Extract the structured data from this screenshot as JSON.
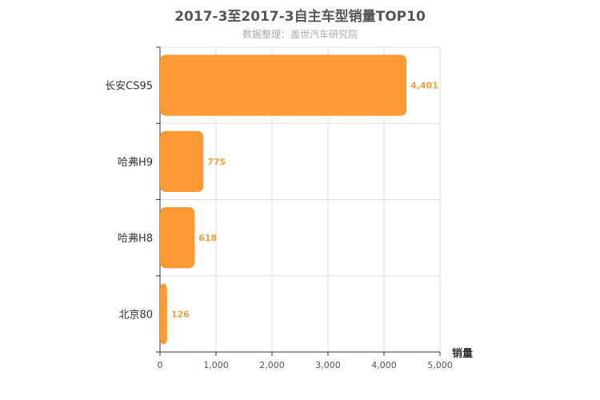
{
  "chart_data": {
    "type": "bar",
    "orientation": "horizontal",
    "title": "2017-3至2017-3自主车型销量TOP10",
    "subtitle": "数据整理：盖世汽车研究院",
    "categories": [
      "长安CS95",
      "哈弗H9",
      "哈弗H8",
      "北京80"
    ],
    "values": [
      4401,
      775,
      618,
      126
    ],
    "value_labels": [
      "4,401",
      "775",
      "618",
      "126"
    ],
    "xlabel": "销量",
    "xlim": [
      0,
      5000
    ],
    "xticks": [
      0,
      1000,
      2000,
      3000,
      4000,
      5000
    ],
    "xtick_labels": [
      "0",
      "1,000",
      "2,000",
      "3,000",
      "4,000",
      "5,000"
    ],
    "grid": true,
    "bar_color": "#ff9933",
    "label_color": "#f0a040"
  }
}
